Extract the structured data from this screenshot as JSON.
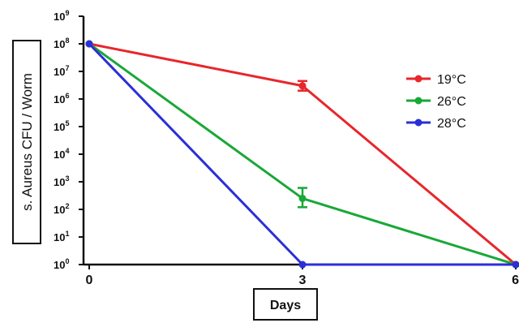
{
  "chart_data": {
    "type": "line",
    "title": "",
    "xlabel": "Days",
    "ylabel": "s. Aureus CFU / Worm",
    "x": [
      0,
      3,
      6
    ],
    "x_ticks": [
      "0",
      "3",
      "6"
    ],
    "y_scale": "log",
    "ylim": [
      1,
      1000000000
    ],
    "y_ticks": [
      {
        "base": "10",
        "exp": "0"
      },
      {
        "base": "10",
        "exp": "1"
      },
      {
        "base": "10",
        "exp": "2"
      },
      {
        "base": "10",
        "exp": "3"
      },
      {
        "base": "10",
        "exp": "4"
      },
      {
        "base": "10",
        "exp": "5"
      },
      {
        "base": "10",
        "exp": "6"
      },
      {
        "base": "10",
        "exp": "7"
      },
      {
        "base": "10",
        "exp": "8"
      },
      {
        "base": "10",
        "exp": "9"
      }
    ],
    "grid": false,
    "legend_position": "right",
    "series": [
      {
        "name": "19°C",
        "color": "#e8262b",
        "values": [
          100000000,
          3000000,
          1
        ],
        "err_low": [
          null,
          2000000,
          null
        ],
        "err_high": [
          null,
          4500000,
          null
        ]
      },
      {
        "name": "26°C",
        "color": "#19a837",
        "values": [
          100000000,
          250,
          1
        ],
        "err_low": [
          null,
          120,
          null
        ],
        "err_high": [
          null,
          600,
          null
        ]
      },
      {
        "name": "28°C",
        "color": "#2b2fd6",
        "values": [
          100000000,
          1,
          1
        ],
        "err_low": [
          null,
          null,
          null
        ],
        "err_high": [
          null,
          null,
          null
        ]
      }
    ]
  }
}
